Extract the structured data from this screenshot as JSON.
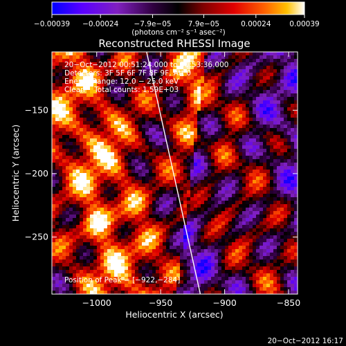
{
  "chart_data": {
    "type": "heatmap",
    "title": "Reconstructed RHESSI Image",
    "xlabel": "Heliocentric X (arcsec)",
    "ylabel": "Heliocentric Y (arcsec)",
    "xlim": [
      -1035,
      -843
    ],
    "ylim": [
      -295,
      -104
    ],
    "x_ticks": [
      -1000,
      -950,
      -900,
      -850
    ],
    "x_tick_labels": [
      "−1000",
      "−950",
      "−900",
      "−850"
    ],
    "y_ticks": [
      -150,
      -200,
      -250
    ],
    "y_tick_labels": [
      "−150",
      "−200",
      "−250"
    ],
    "colorbar": {
      "range": [
        -0.00039,
        0.00039
      ],
      "ticks": [
        -0.00039,
        -0.00024,
        -7.9e-05,
        7.9e-05,
        0.00024,
        0.00039
      ],
      "tick_labels": [
        "−0.00039",
        "−0.00024",
        "−7.9e−05",
        "7.9e−05",
        "0.00024",
        "0.00039"
      ],
      "unit_label": "(photons cm⁻² s⁻¹ asec⁻²)",
      "colors": [
        "#0000ff",
        "#5a00ff",
        "#8020c0",
        "#300040",
        "#000000",
        "#800000",
        "#e00000",
        "#ff6000",
        "#ffc000",
        "#ffffff"
      ]
    },
    "limb_line": {
      "x": [
        -961,
        -919
      ],
      "y": [
        -104,
        -295
      ]
    },
    "peak_position": [
      -922,
      -284
    ],
    "annotations": [
      "20−Oct−2012 00:51:24.000 to 00:53:36.000",
      "Detectors: 3F 5F 6F 7F 8F 9F, Att 0",
      "Energy Range: 12.0 − 25.0 keV",
      "Clean    Total counts: 1.59E+03",
      "Position of Peak = [−922,−284]"
    ]
  },
  "footer": {
    "timestamp": "20−Oct−2012 16:17"
  }
}
